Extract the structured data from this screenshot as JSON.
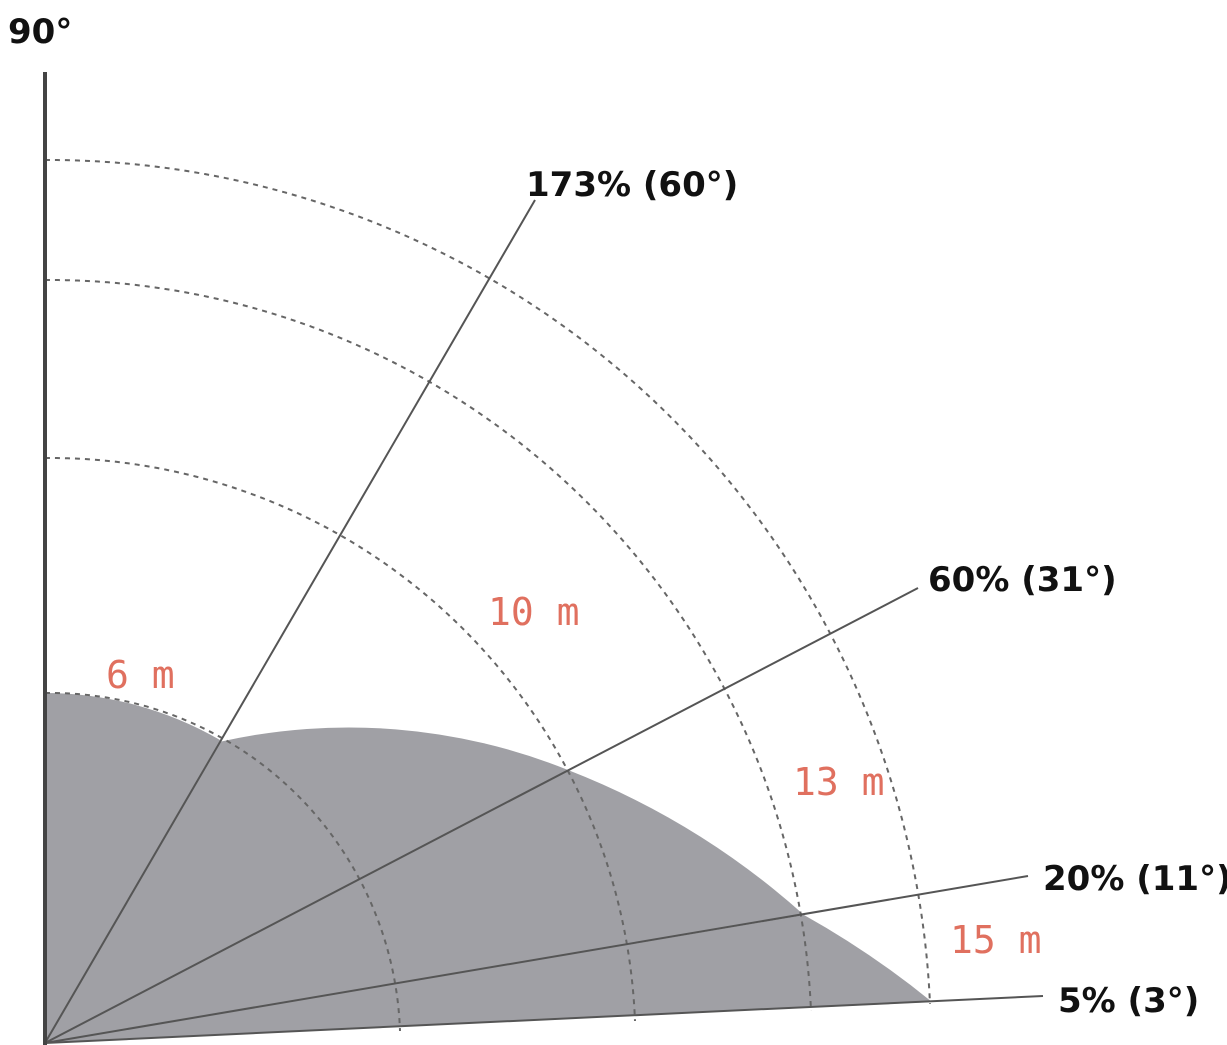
{
  "axis_label": "90°",
  "slope_lines": [
    {
      "label": "173% (60°)",
      "angle_deg": 60
    },
    {
      "label": "60% (31°)",
      "angle_deg": 31
    },
    {
      "label": "20% (11°)",
      "angle_deg": 11
    },
    {
      "label": "5% (3°)",
      "angle_deg": 3
    }
  ],
  "zones": [
    {
      "distance_label": "6 m",
      "distance_m": 6
    },
    {
      "distance_label": "10 m",
      "distance_m": 10
    },
    {
      "distance_label": "13 m",
      "distance_m": 13
    },
    {
      "distance_label": "15 m",
      "distance_m": 15
    }
  ],
  "colors": {
    "shaded_zone": "#a0a0a5",
    "distance_text": "#e0705f",
    "slope_text": "#111111"
  }
}
